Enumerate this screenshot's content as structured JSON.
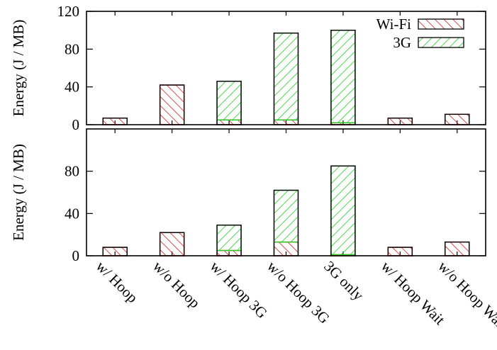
{
  "chart_data": [
    {
      "type": "bar",
      "stacked": true,
      "ylabel": "Energy (J / MB)",
      "ylim": [
        0,
        120
      ],
      "yticks": [
        0,
        40,
        80,
        120
      ],
      "categories": [
        "w/ Hoop",
        "w/o Hoop",
        "w/ Hoop 3G",
        "w/o Hoop 3G",
        "3G only",
        "w/ Hoop Wait",
        "w/o Hoop Wait"
      ],
      "series": [
        {
          "name": "Wi-Fi",
          "values": [
            7,
            42,
            5,
            5,
            2,
            7,
            11
          ]
        },
        {
          "name": "3G",
          "values": [
            0,
            0,
            41,
            92,
            98,
            0,
            0
          ]
        }
      ],
      "legend": "top-right",
      "grid": false
    },
    {
      "type": "bar",
      "stacked": true,
      "ylabel": "Energy (J / MB)",
      "ylim": [
        0,
        120
      ],
      "yticks": [
        0,
        40,
        80
      ],
      "categories": [
        "w/ Hoop",
        "w/o Hoop",
        "w/ Hoop 3G",
        "w/o Hoop 3G",
        "3G only",
        "w/ Hoop Wait",
        "w/o Hoop Wait"
      ],
      "series": [
        {
          "name": "Wi-Fi",
          "values": [
            8,
            22,
            5,
            13,
            1,
            8,
            13
          ]
        },
        {
          "name": "3G",
          "values": [
            0,
            0,
            24,
            49,
            84,
            0,
            0
          ]
        }
      ],
      "grid": false
    }
  ],
  "colors": {
    "wifi": "#cc2222",
    "threeg": "#22cc22"
  }
}
